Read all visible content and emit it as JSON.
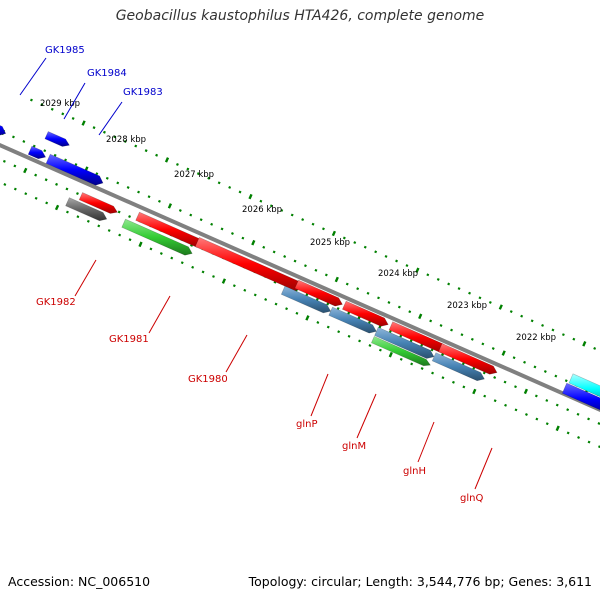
{
  "title": "Geobacillus kaustophilus HTA426, complete genome",
  "footer": {
    "accession": "Accession: NC_006510",
    "summary": "Topology: circular; Length: 3,544,776 bp; Genes: 3,611"
  },
  "colors": {
    "backbone": "#808080",
    "tick": "#008000",
    "top_label": "#0000cc",
    "bottom_label": "#cc0000",
    "blue": "#0000ff",
    "red": "#ff0000",
    "green": "#33cc33",
    "steel": "#4682b4",
    "gray": "#666666",
    "cyan": "#00ffff"
  },
  "scale": {
    "unit": "kbp",
    "labels": [
      "2029 kbp",
      "2028 kbp",
      "2027 kbp",
      "2026 kbp",
      "2025 kbp",
      "2024 kbp",
      "2023 kbp",
      "2022 kbp"
    ]
  },
  "genes": [
    {
      "name": "GK1985",
      "strand": "+",
      "color": "blue"
    },
    {
      "name": "GK1984",
      "strand": "+",
      "color": "blue"
    },
    {
      "name": "GK1983",
      "strand": "+",
      "color": "blue"
    },
    {
      "name": "GK1982",
      "strand": "-",
      "color": "gray"
    },
    {
      "name": "GK1981",
      "strand": "-",
      "color": "green"
    },
    {
      "name": "GK1980",
      "strand": "-",
      "color": "red"
    },
    {
      "name": "glnP",
      "strand": "-",
      "color": "steel"
    },
    {
      "name": "glnM",
      "strand": "-",
      "color": "steel"
    },
    {
      "name": "glnH",
      "strand": "-",
      "color": "green"
    },
    {
      "name": "glnQ",
      "strand": "-",
      "color": "steel"
    }
  ]
}
